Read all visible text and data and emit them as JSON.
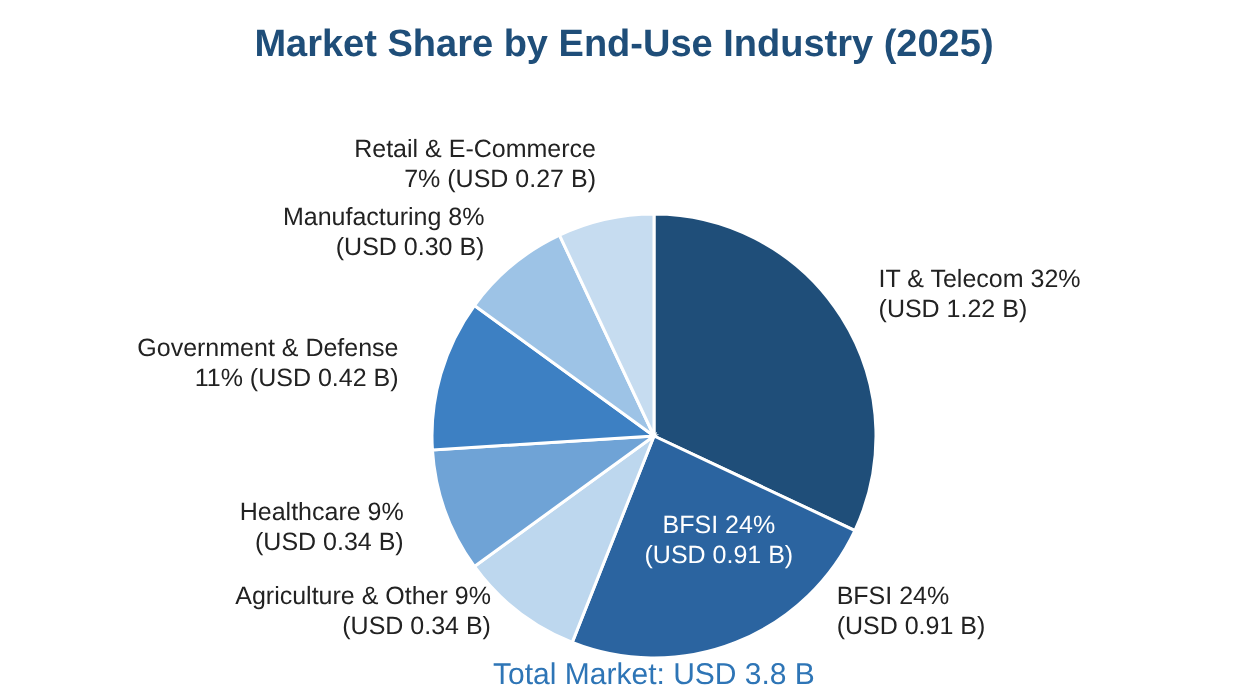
{
  "chart_data": {
    "type": "pie",
    "title": "Market Share by End-Use Industry (2025)",
    "categories": [
      "IT & Telecom",
      "BFSI",
      "Agriculture & Other",
      "Healthcare",
      "Government & Defense",
      "Manufacturing",
      "Retail & E-Commerce"
    ],
    "values": [
      32,
      24,
      9,
      9,
      11,
      8,
      7
    ],
    "colors": [
      "#1f4e79",
      "#2b64a0",
      "#bdd7ee",
      "#6fa3d6",
      "#3d80c3",
      "#9dc3e6",
      "#c6dcf0"
    ],
    "value_labels": [
      "32%\n(USD 1.22 B)",
      "24%\n(USD 0.91 B)",
      "9%\n(USD 0.34 B)",
      "9%\n(USD 0.34 B)",
      "\n11% (USD 0.42 B)",
      "8%\n(USD 0.30 B)",
      "\n7% (USD 0.27 B)"
    ],
    "annotations": [
      {
        "text": "BFSI 24%\n(USD 0.91 B)",
        "x": "BFSI"
      },
      "Total Market: USD 3.8 B"
    ]
  }
}
